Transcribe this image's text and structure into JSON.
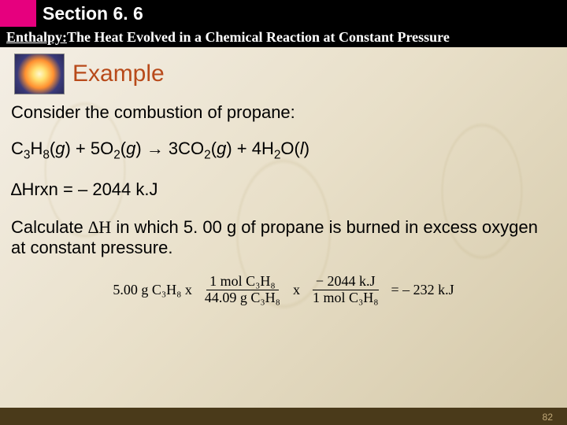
{
  "header": {
    "section_label": "Section 6. 6",
    "subtitle_underlined": "Enthalpy:",
    "subtitle_rest": " The Heat Evolved in a Chemical Reaction at Constant Pressure",
    "magenta_color": "#e6007e",
    "bar_bg": "#000000",
    "bar_fg": "#ffffff"
  },
  "example": {
    "label": "Example",
    "label_color": "#b84a1a"
  },
  "body": {
    "intro": "Consider the combustion of propane:",
    "equation_html": "C<sub>3</sub>H<sub>8</sub>(<span class='italic'>g</span>) + 5O<sub>2</sub>(<span class='italic'>g</span>) → 3CO<sub>2</sub>(<span class='italic'>g</span>) + 4H<sub>2</sub>O(<span class='italic'>l</span>)",
    "dh_line": "∆Hrxn = – 2044 k.J",
    "question_part1": "Calculate ",
    "question_dh": "∆H",
    "question_part2": " in which 5. 00 g of propane is burned in excess oxygen at constant pressure."
  },
  "calc": {
    "lead": "5.00 g C₃H₈ x",
    "frac1_num": "1 mol C₃H₈",
    "frac1_den": "44.09 g C₃H₈",
    "mid": "x",
    "frac2_num": "− 2044 k.J",
    "frac2_den": "1 mol C₃H₈",
    "tail": "=   –  232 k.J"
  },
  "footer": {
    "page": "82",
    "bg": "#4a3a1a"
  }
}
